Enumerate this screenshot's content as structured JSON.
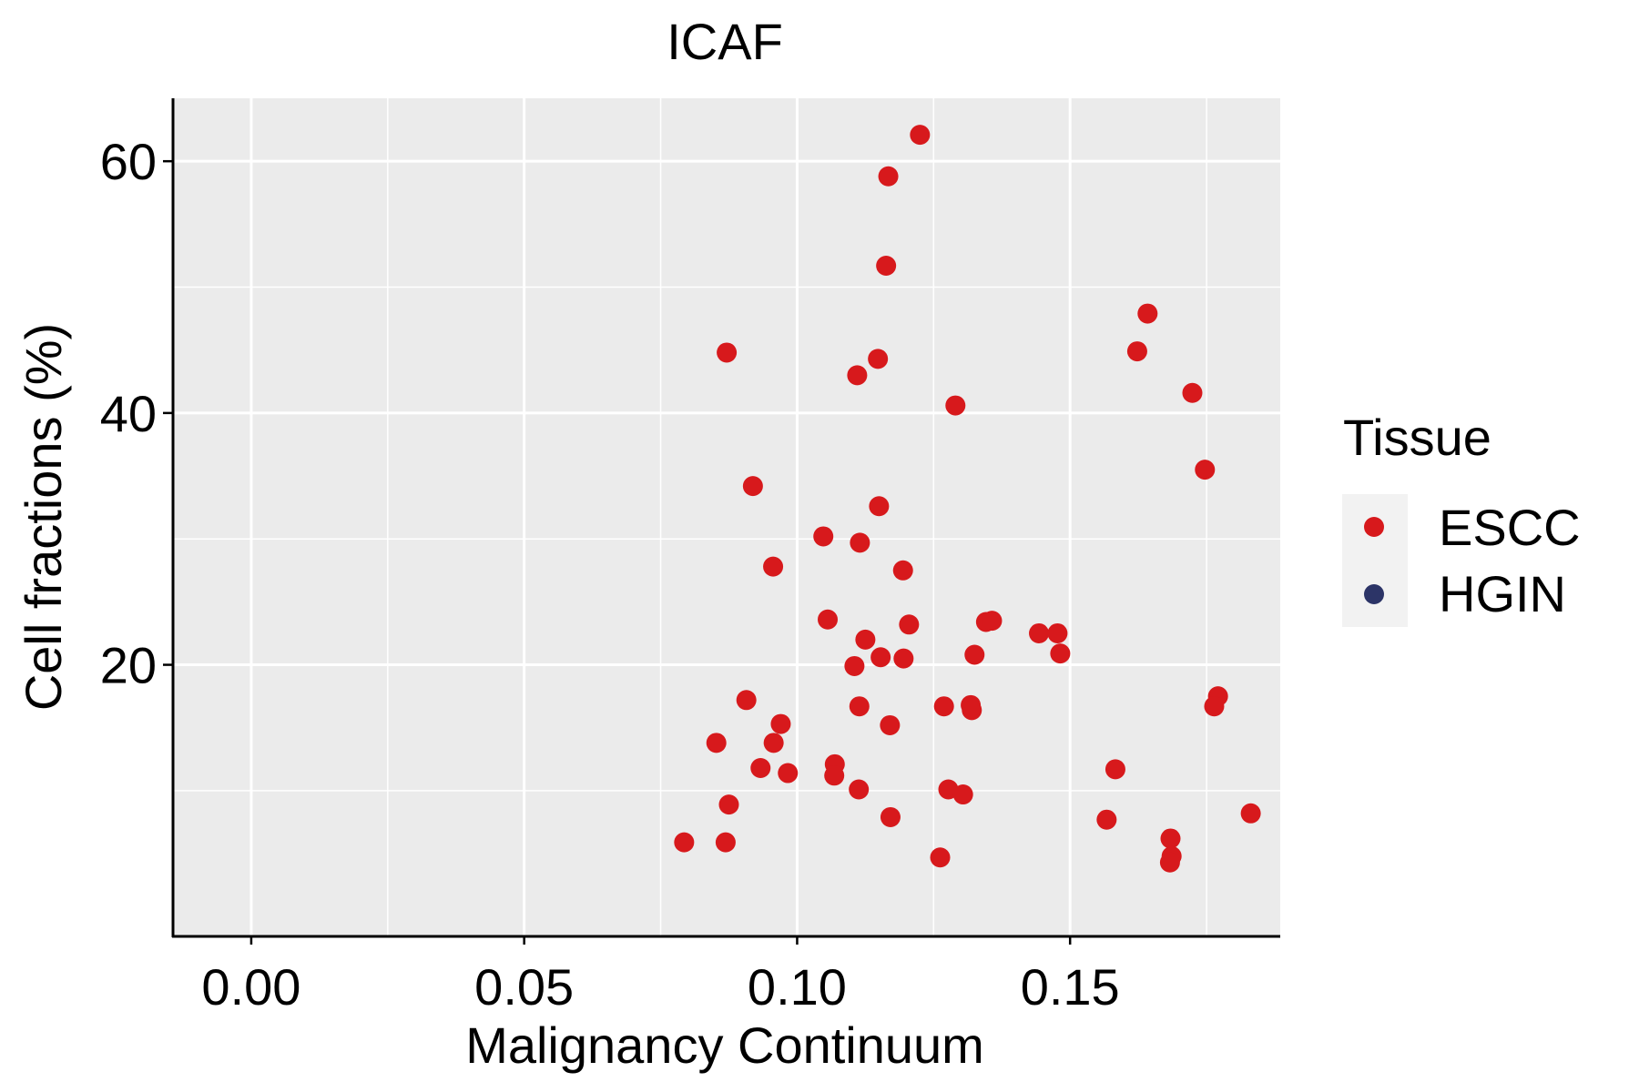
{
  "chart_data": {
    "type": "scatter",
    "title": "ICAF",
    "xlabel": "Malignancy Continuum",
    "ylabel": "Cell fractions (%)",
    "xlim": [
      -0.0145,
      0.1885
    ],
    "ylim": [
      -1.5,
      65
    ],
    "xticks": [
      0.0,
      0.05,
      0.1,
      0.15
    ],
    "xtick_labels": [
      "0.00",
      "0.05",
      "0.10",
      "0.15"
    ],
    "yticks": [
      20,
      40,
      60
    ],
    "ytick_labels": [
      "20",
      "40",
      "60"
    ],
    "grid": true,
    "legend": {
      "title": "Tissue",
      "position": "right",
      "entries": [
        {
          "label": "ESCC",
          "color": "#D7191C"
        },
        {
          "label": "HGIN",
          "color": "#2C3467"
        }
      ]
    },
    "series": [
      {
        "name": "ESCC",
        "color": "#D7191C",
        "points": [
          {
            "x": 0.1225,
            "y": 62.1
          },
          {
            "x": 0.1167,
            "y": 58.8
          },
          {
            "x": 0.1163,
            "y": 51.7
          },
          {
            "x": 0.1642,
            "y": 47.9
          },
          {
            "x": 0.0871,
            "y": 44.8
          },
          {
            "x": 0.1623,
            "y": 44.9
          },
          {
            "x": 0.1148,
            "y": 44.3
          },
          {
            "x": 0.111,
            "y": 43.0
          },
          {
            "x": 0.1724,
            "y": 41.6
          },
          {
            "x": 0.129,
            "y": 40.6
          },
          {
            "x": 0.1747,
            "y": 35.5
          },
          {
            "x": 0.0919,
            "y": 34.2
          },
          {
            "x": 0.115,
            "y": 32.6
          },
          {
            "x": 0.1048,
            "y": 30.2
          },
          {
            "x": 0.1115,
            "y": 29.7
          },
          {
            "x": 0.0956,
            "y": 27.8
          },
          {
            "x": 0.1194,
            "y": 27.5
          },
          {
            "x": 0.1056,
            "y": 23.6
          },
          {
            "x": 0.1346,
            "y": 23.4
          },
          {
            "x": 0.1205,
            "y": 23.2
          },
          {
            "x": 0.1357,
            "y": 23.5
          },
          {
            "x": 0.1443,
            "y": 22.5
          },
          {
            "x": 0.1477,
            "y": 22.5
          },
          {
            "x": 0.1125,
            "y": 22.0
          },
          {
            "x": 0.1482,
            "y": 20.9
          },
          {
            "x": 0.1325,
            "y": 20.8
          },
          {
            "x": 0.1153,
            "y": 20.6
          },
          {
            "x": 0.1195,
            "y": 20.5
          },
          {
            "x": 0.1105,
            "y": 19.9
          },
          {
            "x": 0.1771,
            "y": 17.5
          },
          {
            "x": 0.0907,
            "y": 17.2
          },
          {
            "x": 0.1764,
            "y": 16.7
          },
          {
            "x": 0.1114,
            "y": 16.7
          },
          {
            "x": 0.1269,
            "y": 16.7
          },
          {
            "x": 0.1318,
            "y": 16.8
          },
          {
            "x": 0.132,
            "y": 16.4
          },
          {
            "x": 0.097,
            "y": 15.3
          },
          {
            "x": 0.117,
            "y": 15.2
          },
          {
            "x": 0.0852,
            "y": 13.8
          },
          {
            "x": 0.0957,
            "y": 13.8
          },
          {
            "x": 0.1069,
            "y": 12.1
          },
          {
            "x": 0.0933,
            "y": 11.8
          },
          {
            "x": 0.1583,
            "y": 11.7
          },
          {
            "x": 0.0983,
            "y": 11.4
          },
          {
            "x": 0.1068,
            "y": 11.2
          },
          {
            "x": 0.1113,
            "y": 10.1
          },
          {
            "x": 0.1277,
            "y": 10.1
          },
          {
            "x": 0.1304,
            "y": 9.7
          },
          {
            "x": 0.0875,
            "y": 8.9
          },
          {
            "x": 0.1831,
            "y": 8.2
          },
          {
            "x": 0.1171,
            "y": 7.9
          },
          {
            "x": 0.1567,
            "y": 7.7
          },
          {
            "x": 0.0793,
            "y": 5.9
          },
          {
            "x": 0.0869,
            "y": 5.9
          },
          {
            "x": 0.1684,
            "y": 6.2
          },
          {
            "x": 0.1686,
            "y": 4.8
          },
          {
            "x": 0.1262,
            "y": 4.7
          },
          {
            "x": 0.1683,
            "y": 4.3
          }
        ]
      },
      {
        "name": "HGIN",
        "color": "#2C3467",
        "points": []
      }
    ]
  }
}
